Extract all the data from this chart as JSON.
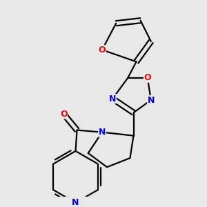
{
  "background_color": "#e8e8e8",
  "bond_color": "#000000",
  "atom_colors": {
    "O": "#ff0000",
    "N": "#0000ee",
    "C": "#000000"
  },
  "bond_width": 1.6,
  "figsize": [
    3.0,
    3.0
  ],
  "dpi": 100,
  "xlim": [
    30,
    270
  ],
  "ylim": [
    10,
    290
  ]
}
